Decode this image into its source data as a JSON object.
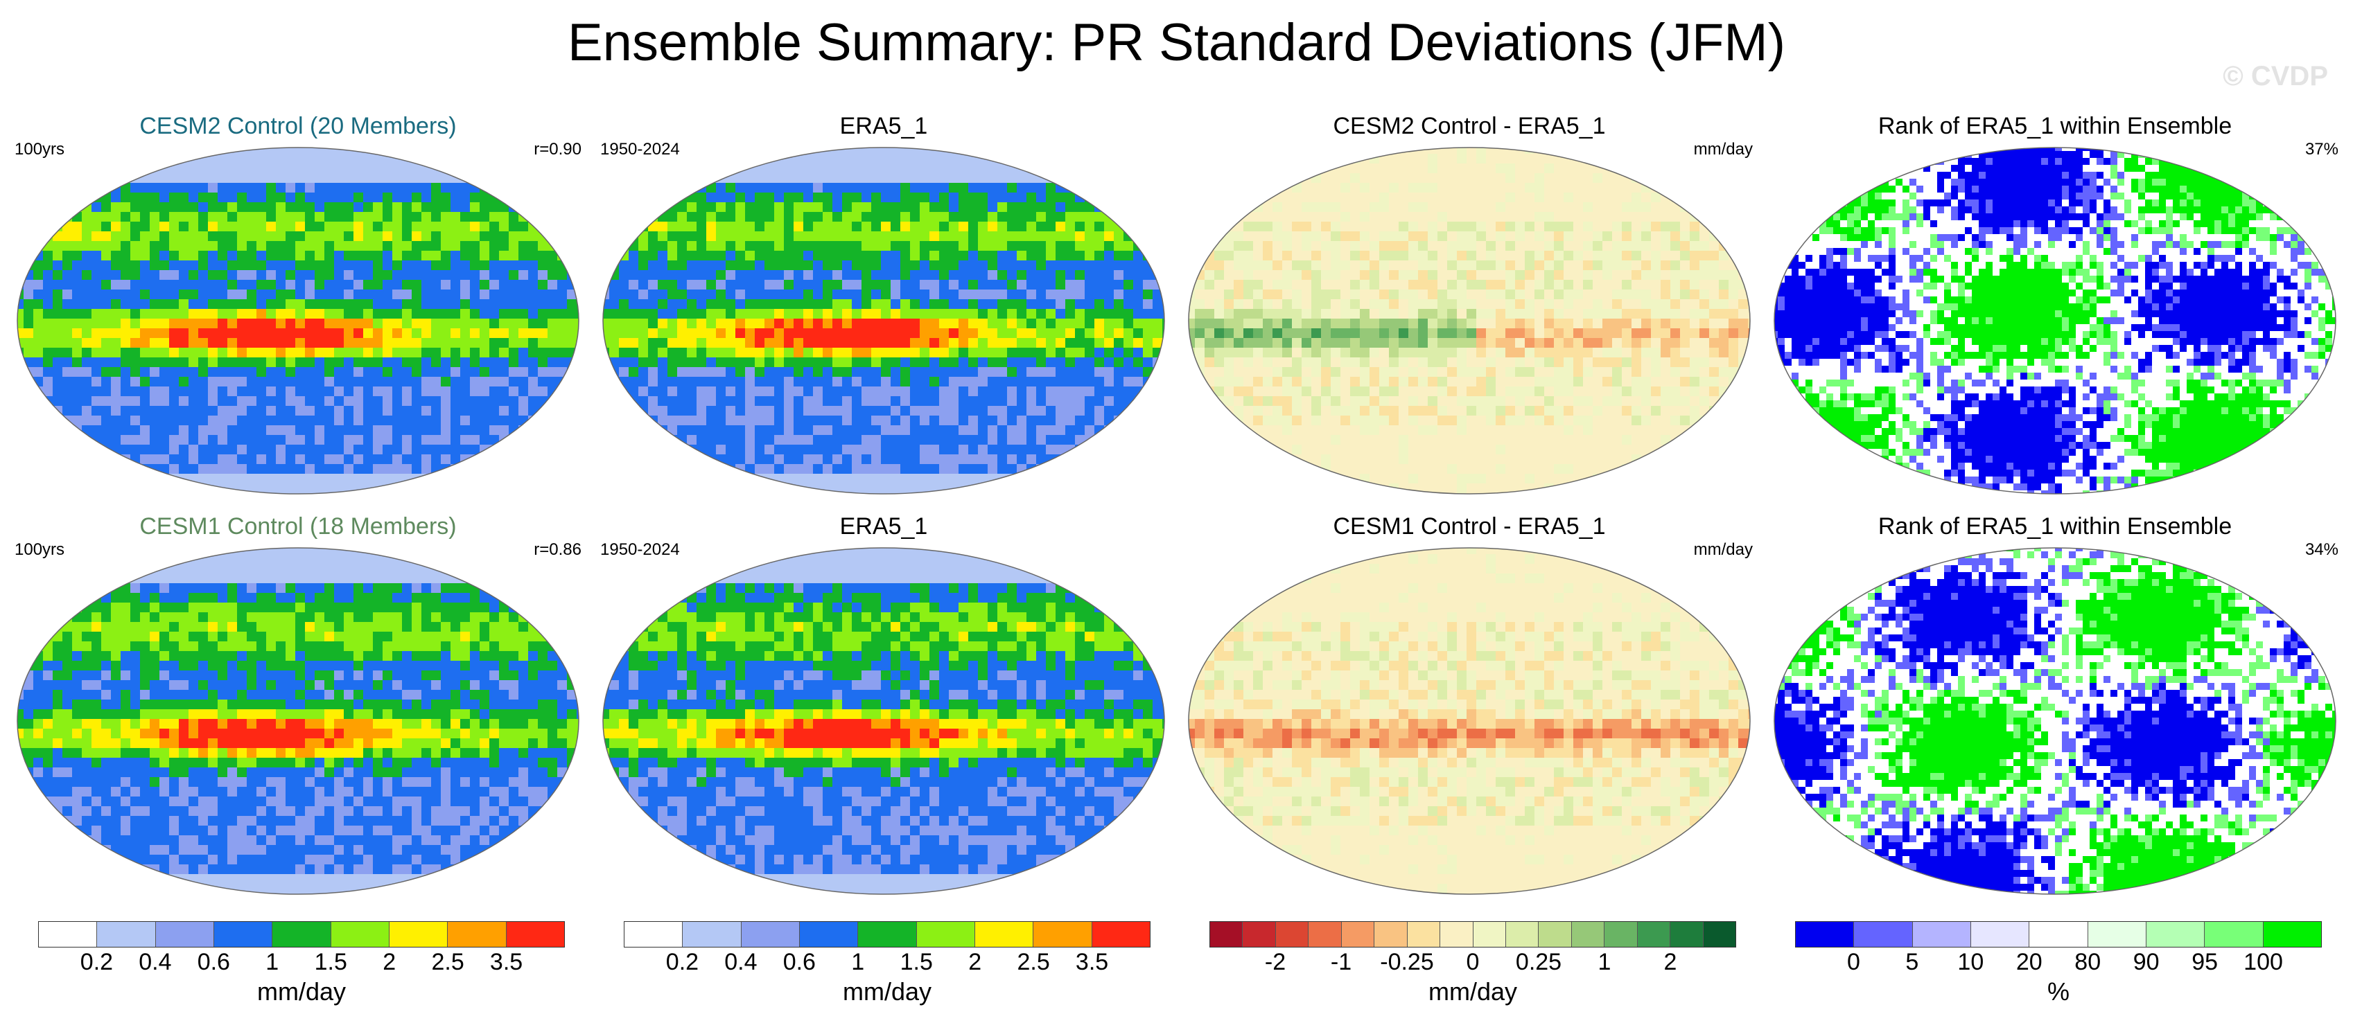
{
  "title": "Ensemble Summary: PR Standard Deviations (JFM)",
  "watermark": "© CVDP",
  "chart_data": [
    {
      "type": "heatmap",
      "title": "CESM2 Control (20 Members)",
      "label_left": "100yrs",
      "label_right": "r=0.90",
      "scale": "std",
      "stats": {
        "r": 0.9
      }
    },
    {
      "type": "heatmap",
      "title": "ERA5_1",
      "label_left": "1950-2024",
      "label_right": "",
      "scale": "std"
    },
    {
      "type": "heatmap",
      "title": "CESM2 Control - ERA5_1",
      "label_left": "",
      "label_right": "mm/day",
      "scale": "diff"
    },
    {
      "type": "heatmap",
      "title": "Rank of ERA5_1 within Ensemble",
      "label_left": "",
      "label_right": "37%",
      "scale": "rank",
      "stats": {
        "percent": 37
      }
    },
    {
      "type": "heatmap",
      "title": "CESM1 Control (18 Members)",
      "label_left": "100yrs",
      "label_right": "r=0.86",
      "scale": "std",
      "stats": {
        "r": 0.86
      }
    },
    {
      "type": "heatmap",
      "title": "ERA5_1",
      "label_left": "1950-2024",
      "label_right": "",
      "scale": "std"
    },
    {
      "type": "heatmap",
      "title": "CESM1 Control - ERA5_1",
      "label_left": "",
      "label_right": "mm/day",
      "scale": "diff"
    },
    {
      "type": "heatmap",
      "title": "Rank of ERA5_1 within Ensemble",
      "label_left": "",
      "label_right": "34%",
      "scale": "rank",
      "stats": {
        "percent": 34
      }
    }
  ],
  "colorbars": [
    {
      "name": "std",
      "unit": "mm/day",
      "colors": [
        "#ffffff",
        "#b4c8f5",
        "#8ca0f0",
        "#1e6ef0",
        "#14b428",
        "#8cf014",
        "#fff000",
        "#ffa000",
        "#ff2814"
      ],
      "ticks": [
        "0.2",
        "0.4",
        "0.6",
        "1",
        "1.5",
        "2",
        "2.5",
        "3.5"
      ]
    },
    {
      "name": "std",
      "unit": "mm/day",
      "colors": [
        "#ffffff",
        "#b4c8f5",
        "#8ca0f0",
        "#1e6ef0",
        "#14b428",
        "#8cf014",
        "#fff000",
        "#ffa000",
        "#ff2814"
      ],
      "ticks": [
        "0.2",
        "0.4",
        "0.6",
        "1",
        "1.5",
        "2",
        "2.5",
        "3.5"
      ]
    },
    {
      "name": "diff",
      "unit": "mm/day",
      "colors": [
        "#a50f26",
        "#c8282d",
        "#dc4632",
        "#ec6e46",
        "#f59b64",
        "#f9c382",
        "#fbe1a0",
        "#faf0c4",
        "#f0f5c4",
        "#dcedaa",
        "#bedc8c",
        "#96c878",
        "#69b464",
        "#3c9a50",
        "#1e7d3c",
        "#0a5a2d"
      ],
      "ticks": [
        "-2",
        "-1",
        "-0.25",
        "0",
        "0.25",
        "1",
        "2"
      ]
    },
    {
      "name": "rank",
      "unit": "%",
      "colors": [
        "#0000f0",
        "#6464ff",
        "#b4b4ff",
        "#e6e6ff",
        "#ffffff",
        "#e6ffe6",
        "#b4ffb4",
        "#78ff78",
        "#00f000"
      ],
      "ticks": [
        "0",
        "5",
        "10",
        "20",
        "80",
        "90",
        "95",
        "100"
      ]
    }
  ]
}
